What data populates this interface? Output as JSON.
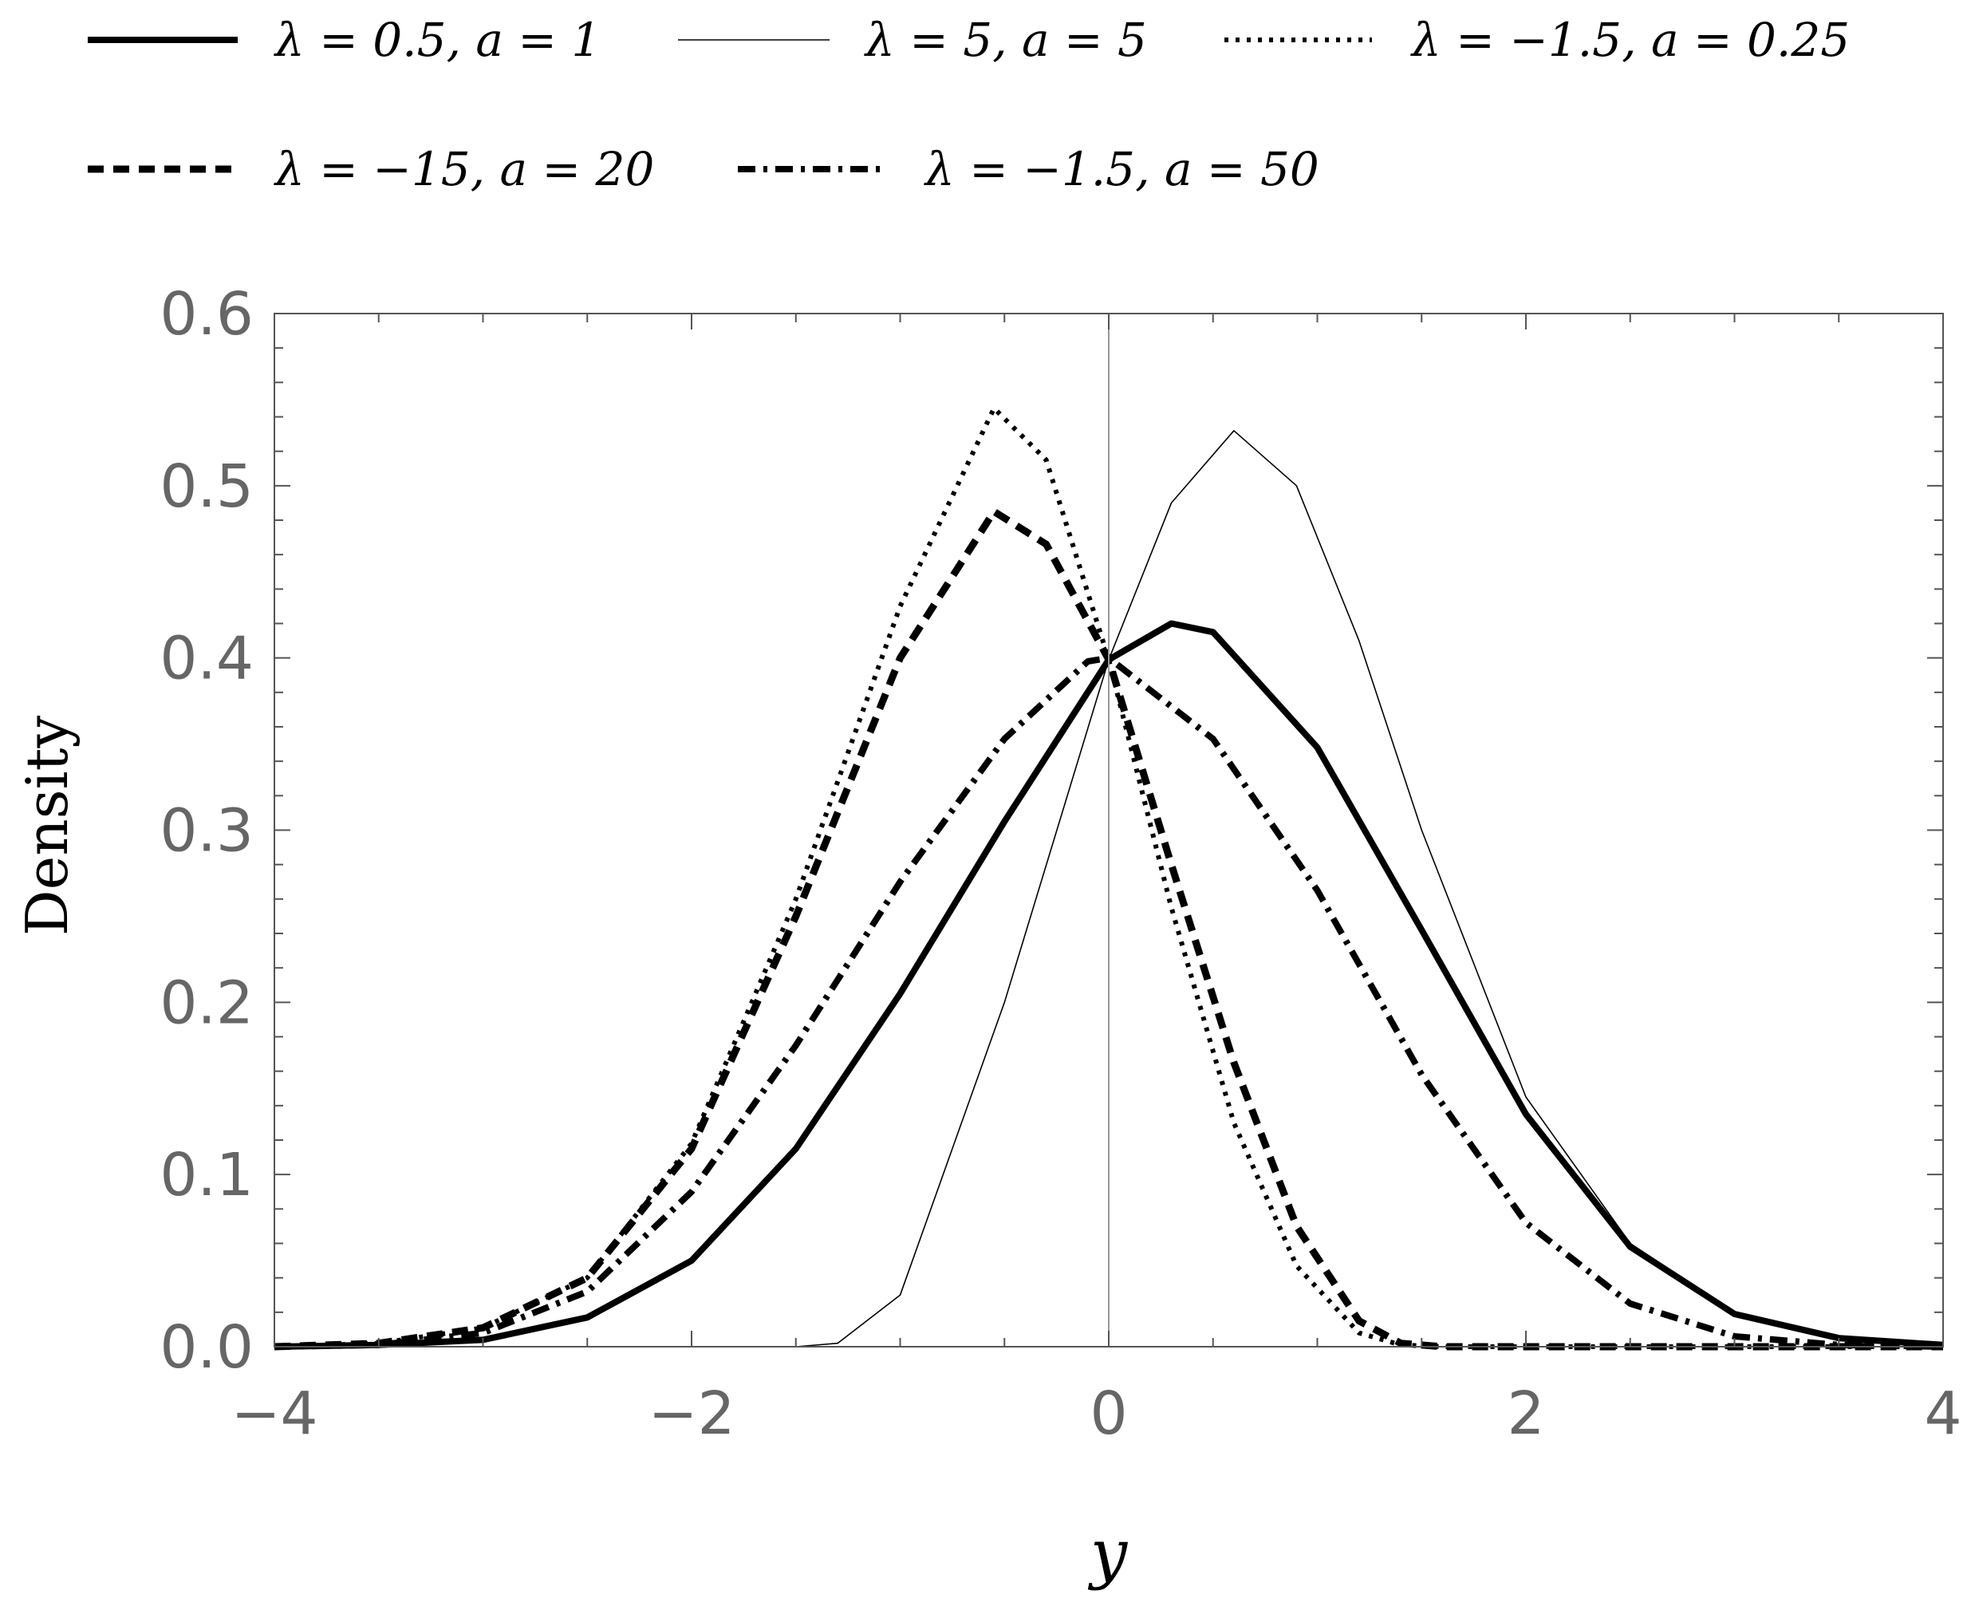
{
  "chart_data": {
    "type": "line",
    "xlabel": "y",
    "ylabel": "Density",
    "xlim": [
      -4,
      4
    ],
    "ylim": [
      0,
      0.6
    ],
    "xticks": [
      -4,
      -2,
      0,
      2,
      4
    ],
    "xtick_labels": [
      "−4",
      "−2",
      "0",
      "2",
      "4"
    ],
    "yticks": [
      0,
      0.1,
      0.2,
      0.3,
      0.4,
      0.5,
      0.6
    ],
    "ytick_labels": [
      "0.0",
      "0.1",
      "0.2",
      "0.3",
      "0.4",
      "0.5",
      "0.6"
    ],
    "grid": false,
    "legend_position": "top",
    "series": [
      {
        "name": "λ = 0.5, a = 1",
        "style": "solid-thick",
        "x": [
          -4.0,
          -3.5,
          -3.0,
          -2.5,
          -2.0,
          -1.5,
          -1.0,
          -0.5,
          0.0,
          0.3,
          0.5,
          1.0,
          1.5,
          2.0,
          2.5,
          3.0,
          3.5,
          4.0
        ],
        "y": [
          0.0,
          0.001,
          0.004,
          0.017,
          0.05,
          0.115,
          0.205,
          0.305,
          0.399,
          0.42,
          0.415,
          0.348,
          0.242,
          0.135,
          0.058,
          0.019,
          0.005,
          0.001
        ]
      },
      {
        "name": "λ = 5, a = 5",
        "style": "solid-thin",
        "x": [
          -4.0,
          -1.5,
          -1.3,
          -1.0,
          -0.5,
          0.0,
          0.3,
          0.6,
          0.9,
          1.2,
          1.5,
          2.0,
          2.5,
          3.0,
          3.5,
          4.0
        ],
        "y": [
          0.0,
          0.0,
          0.002,
          0.03,
          0.2,
          0.399,
          0.49,
          0.532,
          0.5,
          0.41,
          0.3,
          0.145,
          0.06,
          0.02,
          0.005,
          0.001
        ]
      },
      {
        "name": "λ = −1.5, a = 0.25",
        "style": "dotted",
        "x": [
          -4.0,
          -3.5,
          -3.0,
          -2.5,
          -2.0,
          -1.5,
          -1.0,
          -0.55,
          -0.3,
          0.0,
          0.3,
          0.6,
          0.9,
          1.2,
          1.4,
          1.6,
          2.0,
          4.0
        ],
        "y": [
          0.0,
          0.002,
          0.011,
          0.04,
          0.118,
          0.26,
          0.43,
          0.545,
          0.515,
          0.399,
          0.255,
          0.13,
          0.047,
          0.008,
          0.001,
          0.0,
          0.0,
          0.0
        ]
      },
      {
        "name": "λ = −15, a = 20",
        "style": "dashed",
        "x": [
          -4.0,
          -3.5,
          -3.0,
          -2.5,
          -2.0,
          -1.5,
          -1.0,
          -0.55,
          -0.3,
          0.0,
          0.3,
          0.6,
          0.9,
          1.2,
          1.4,
          1.6,
          2.0,
          4.0
        ],
        "y": [
          0.0,
          0.002,
          0.011,
          0.04,
          0.115,
          0.25,
          0.4,
          0.485,
          0.466,
          0.399,
          0.28,
          0.165,
          0.07,
          0.015,
          0.002,
          0.0,
          0.0,
          0.0
        ]
      },
      {
        "name": "λ = −1.5, a = 50",
        "style": "dashdot",
        "x": [
          -4.0,
          -3.5,
          -3.0,
          -2.5,
          -2.0,
          -1.5,
          -1.0,
          -0.5,
          -0.1,
          0.0,
          0.5,
          1.0,
          1.5,
          2.0,
          2.5,
          3.0,
          3.5,
          4.0
        ],
        "y": [
          0.0,
          0.001,
          0.008,
          0.032,
          0.09,
          0.175,
          0.27,
          0.353,
          0.398,
          0.4,
          0.353,
          0.265,
          0.158,
          0.072,
          0.025,
          0.006,
          0.001,
          0.0
        ]
      }
    ]
  }
}
